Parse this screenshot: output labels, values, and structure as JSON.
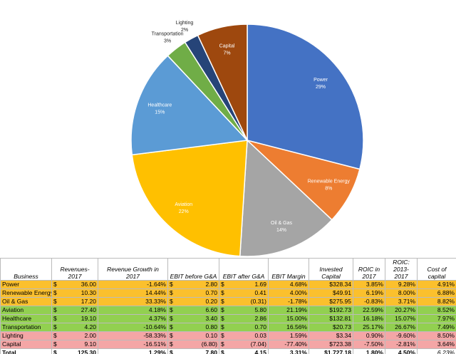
{
  "chart_data": {
    "type": "pie",
    "categories": [
      "Power",
      "Renewable Energy",
      "Oil & Gas",
      "Aviation",
      "Healthcare",
      "Transportation",
      "Lighting",
      "Capital"
    ],
    "values": [
      29,
      8,
      14,
      22,
      15,
      3,
      2,
      7
    ],
    "value_labels": [
      "29%",
      "8%",
      "14%",
      "22%",
      "15%",
      "3%",
      "2%",
      "7%"
    ],
    "colors": [
      "#4472c4",
      "#ed7d31",
      "#a5a5a5",
      "#ffc000",
      "#5b9bd5",
      "#70ad47",
      "#264478",
      "#9e480e"
    ]
  },
  "table": {
    "header": [
      "Business",
      "Revenues- 2017",
      "Revenue Growth in 2017",
      "EBIT before G&A",
      "EBIT after G&A",
      "EBIT Margin",
      "Invested Capital",
      "ROIC in 2017",
      "ROIC: 2013-2017",
      "Cost of capital"
    ],
    "rows": [
      [
        "Power",
        [
          "$",
          "36.00"
        ],
        "-1.64%",
        [
          "$",
          "2.80"
        ],
        [
          "$",
          "1.69"
        ],
        "4.68%",
        "$328.34",
        "3.85%",
        "9.28%",
        "4.91%"
      ],
      [
        "Renewable Energy",
        [
          "$",
          "10.30"
        ],
        "14.44%",
        [
          "$",
          "0.70"
        ],
        [
          "$",
          "0.41"
        ],
        "4.00%",
        "$49.91",
        "6.19%",
        "8.00%",
        "6.88%"
      ],
      [
        "Oil & Gas",
        [
          "$",
          "17.20"
        ],
        "33.33%",
        [
          "$",
          "0.20"
        ],
        [
          "$",
          "(0.31)"
        ],
        "-1.78%",
        "$275.95",
        "-0.83%",
        "3.71%",
        "8.82%"
      ],
      [
        "Aviation",
        [
          "$",
          "27.40"
        ],
        "4.18%",
        [
          "$",
          "6.60"
        ],
        [
          "$",
          "5.80"
        ],
        "21.19%",
        "$192.73",
        "22.59%",
        "20.27%",
        "8.52%"
      ],
      [
        "Healthcare",
        [
          "$",
          "19.10"
        ],
        "4.37%",
        [
          "$",
          "3.40"
        ],
        [
          "$",
          "2.86"
        ],
        "15.00%",
        "$132.81",
        "16.18%",
        "15.07%",
        "7.97%"
      ],
      [
        "Transportation",
        [
          "$",
          "4.20"
        ],
        "-10.64%",
        [
          "$",
          "0.80"
        ],
        [
          "$",
          "0.70"
        ],
        "16.56%",
        "$20.73",
        "25.17%",
        "26.67%",
        "7.49%"
      ],
      [
        "Lighting",
        [
          "$",
          "2.00"
        ],
        "-58.33%",
        [
          "$",
          "0.10"
        ],
        [
          "$",
          "0.03"
        ],
        "1.59%",
        "$3.34",
        "0.90%",
        "-9.60%",
        "8.50%"
      ],
      [
        "Capital",
        [
          "$",
          "9.10"
        ],
        "-16.51%",
        [
          "$",
          "(6.80)"
        ],
        [
          "$",
          "(7.04)"
        ],
        "-77.40%",
        "$723.38",
        "-7.50%",
        "-2.81%",
        "3.64%"
      ],
      [
        "Total",
        [
          "$",
          "125.30"
        ],
        "1.29%",
        [
          "$",
          "7.80"
        ],
        [
          "$",
          "4.15"
        ],
        "3.31%",
        "$1,727.18",
        "1.80%",
        "4.50%",
        "6.23%"
      ]
    ]
  }
}
